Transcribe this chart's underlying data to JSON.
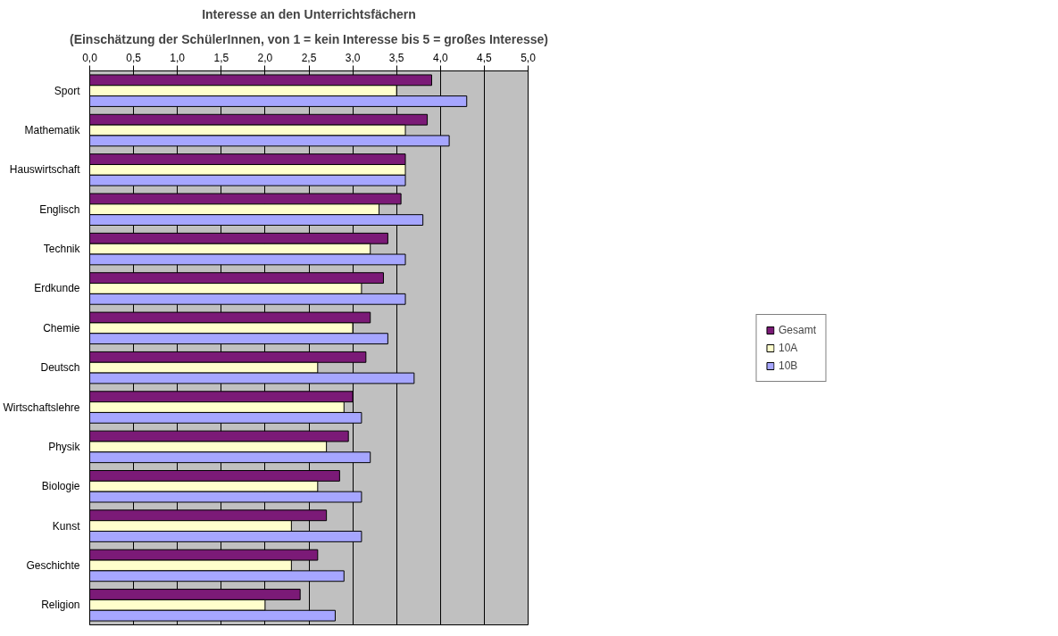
{
  "chart_data": {
    "type": "bar",
    "orientation": "horizontal",
    "title": "Interesse an den Unterrichtsfächern",
    "subtitle": "(Einschätzung der SchülerInnen, von 1 = kein Interesse bis 5 = großes Interesse)",
    "categories": [
      "Sport",
      "Mathematik",
      "Hauswirtschaft",
      "Englisch",
      "Technik",
      "Erdkunde",
      "Chemie",
      "Deutsch",
      "Wirtschaftslehre",
      "Physik",
      "Biologie",
      "Kunst",
      "Geschichte",
      "Religion"
    ],
    "series": [
      {
        "name": "Gesamt",
        "color": "#7b1a77",
        "values": [
          3.9,
          3.85,
          3.6,
          3.55,
          3.4,
          3.35,
          3.2,
          3.15,
          3.0,
          2.95,
          2.85,
          2.7,
          2.6,
          2.4
        ]
      },
      {
        "name": "10A",
        "color": "#ffffcc",
        "values": [
          3.5,
          3.6,
          3.6,
          3.3,
          3.2,
          3.1,
          3.0,
          2.6,
          2.9,
          2.7,
          2.6,
          2.3,
          2.3,
          2.0
        ]
      },
      {
        "name": "10B",
        "color": "#a6a6ff",
        "values": [
          4.3,
          4.1,
          3.6,
          3.8,
          3.6,
          3.6,
          3.4,
          3.7,
          3.1,
          3.2,
          3.1,
          3.1,
          2.9,
          2.8
        ]
      }
    ],
    "xlim": [
      0,
      5
    ],
    "xticks": [
      {
        "value": 0,
        "label": "0,0"
      },
      {
        "value": 0.5,
        "label": "0,5"
      },
      {
        "value": 1,
        "label": "1,0"
      },
      {
        "value": 1.5,
        "label": "1,5"
      },
      {
        "value": 2,
        "label": "2,0"
      },
      {
        "value": 2.5,
        "label": "2,5"
      },
      {
        "value": 3,
        "label": "3,0"
      },
      {
        "value": 3.5,
        "label": "3,5"
      },
      {
        "value": 4,
        "label": "4,0"
      },
      {
        "value": 4.5,
        "label": "4,5"
      },
      {
        "value": 5,
        "label": "5,0"
      }
    ],
    "grid": "x",
    "legend": "right"
  }
}
